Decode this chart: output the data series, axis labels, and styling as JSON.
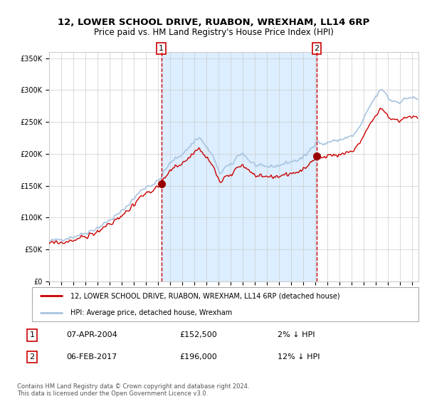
{
  "title": "12, LOWER SCHOOL DRIVE, RUABON, WREXHAM, LL14 6RP",
  "subtitle": "Price paid vs. HM Land Registry's House Price Index (HPI)",
  "legend_line1": "12, LOWER SCHOOL DRIVE, RUABON, WREXHAM, LL14 6RP (detached house)",
  "legend_line2": "HPI: Average price, detached house, Wrexham",
  "annotation1_date": "07-APR-2004",
  "annotation1_price": "£152,500",
  "annotation1_hpi": "2% ↓ HPI",
  "annotation2_date": "06-FEB-2017",
  "annotation2_price": "£196,000",
  "annotation2_hpi": "12% ↓ HPI",
  "footer": "Contains HM Land Registry data © Crown copyright and database right 2024.\nThis data is licensed under the Open Government Licence v3.0.",
  "sale1_year": 2004.27,
  "sale1_price": 152500,
  "sale2_year": 2017.09,
  "sale2_price": 196000,
  "hpi_color": "#a8c4e0",
  "price_color": "#cc0000",
  "dot_color": "#990000",
  "vline_color": "#cc0000",
  "shade_color": "#dceeff",
  "background_color": "#ffffff",
  "grid_color": "#cccccc",
  "ylim": [
    0,
    360000
  ],
  "xlim_start": 1995.0,
  "xlim_end": 2025.5
}
